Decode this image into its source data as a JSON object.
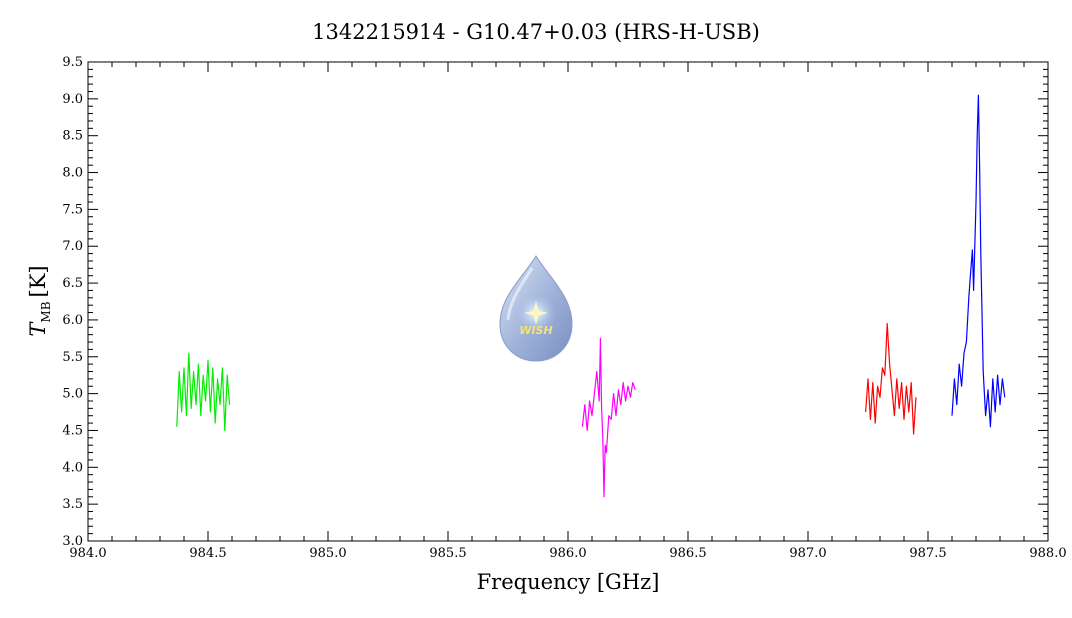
{
  "chart_data": {
    "type": "line",
    "title": "1342215914 - G10.47+0.03 (HRS-H-USB)",
    "xlabel": "Frequency [GHz]",
    "ylabel_main": "T",
    "ylabel_sub": "MB",
    "ylabel_unit": "[K]",
    "xlim": [
      984.0,
      988.0
    ],
    "ylim": [
      3.0,
      9.5
    ],
    "xticks": [
      "984.0",
      "984.5",
      "985.0",
      "985.5",
      "986.0",
      "986.5",
      "987.0",
      "987.5",
      "988.0"
    ],
    "yticks": [
      "3.0",
      "3.5",
      "4.0",
      "4.5",
      "5.0",
      "5.5",
      "6.0",
      "6.5",
      "7.0",
      "7.5",
      "8.0",
      "8.5",
      "9.0",
      "9.5"
    ],
    "grid": false,
    "series": [
      {
        "color": "#00ee00",
        "x": [
          984.37,
          984.38,
          984.39,
          984.4,
          984.41,
          984.42,
          984.43,
          984.44,
          984.45,
          984.46,
          984.47,
          984.48,
          984.49,
          984.5,
          984.51,
          984.52,
          984.53,
          984.54,
          984.55,
          984.56,
          984.57,
          984.58,
          984.59
        ],
        "y": [
          4.55,
          5.3,
          4.75,
          5.35,
          4.7,
          5.55,
          4.8,
          5.3,
          4.85,
          5.4,
          4.7,
          5.25,
          4.9,
          5.45,
          4.75,
          5.35,
          4.6,
          5.2,
          4.85,
          5.35,
          4.5,
          5.25,
          4.85
        ]
      },
      {
        "color": "#ff00ff",
        "x": [
          986.06,
          986.07,
          986.08,
          986.09,
          986.1,
          986.11,
          986.12,
          986.13,
          986.135,
          986.14,
          986.145,
          986.15,
          986.155,
          986.16,
          986.17,
          986.18,
          986.19,
          986.2,
          986.21,
          986.22,
          986.23,
          986.24,
          986.25,
          986.26,
          986.27,
          986.28
        ],
        "y": [
          4.55,
          4.85,
          4.5,
          4.9,
          4.7,
          5.0,
          5.3,
          4.9,
          5.75,
          4.8,
          4.4,
          3.6,
          4.3,
          4.2,
          4.7,
          4.65,
          5.0,
          4.7,
          5.05,
          4.85,
          5.15,
          4.9,
          5.1,
          4.95,
          5.15,
          5.05
        ]
      },
      {
        "color": "#ff0000",
        "x": [
          987.24,
          987.25,
          987.26,
          987.27,
          987.28,
          987.29,
          987.3,
          987.31,
          987.32,
          987.33,
          987.34,
          987.35,
          987.36,
          987.37,
          987.38,
          987.39,
          987.4,
          987.41,
          987.42,
          987.43,
          987.44,
          987.45
        ],
        "y": [
          4.75,
          5.2,
          4.65,
          5.15,
          4.6,
          5.1,
          4.95,
          5.35,
          5.25,
          5.95,
          5.4,
          5.05,
          4.7,
          5.2,
          4.8,
          5.15,
          4.65,
          5.1,
          4.75,
          5.15,
          4.45,
          4.95
        ]
      },
      {
        "color": "#0000ff",
        "x": [
          987.6,
          987.61,
          987.62,
          987.63,
          987.64,
          987.65,
          987.66,
          987.67,
          987.68,
          987.685,
          987.69,
          987.7,
          987.705,
          987.71,
          987.715,
          987.72,
          987.73,
          987.74,
          987.75,
          987.76,
          987.77,
          987.78,
          987.79,
          987.8,
          987.81,
          987.82
        ],
        "y": [
          4.7,
          5.2,
          4.85,
          5.4,
          5.1,
          5.55,
          5.7,
          6.3,
          6.75,
          6.95,
          6.4,
          7.6,
          8.5,
          9.05,
          8.1,
          6.9,
          5.3,
          4.7,
          5.05,
          4.55,
          5.2,
          4.75,
          5.25,
          4.85,
          5.2,
          4.95
        ]
      }
    ]
  },
  "logo": {
    "text": "WISH",
    "icon": "water-drop-star-logo"
  }
}
